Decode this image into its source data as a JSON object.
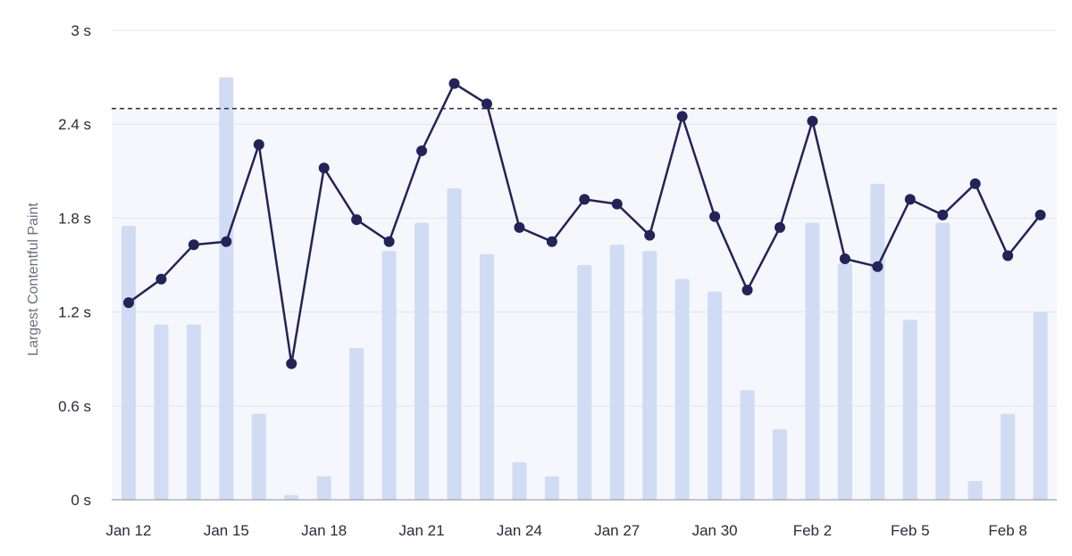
{
  "chart_data": {
    "type": "bar+line",
    "ylabel": "Largest Contentful Paint",
    "y_unit": "s",
    "ylim": [
      0,
      3
    ],
    "y_ticks": [
      0,
      0.6,
      1.2,
      1.8,
      2.4,
      3
    ],
    "y_tick_labels": [
      "0 s",
      "0.6 s",
      "1.2 s",
      "1.8 s",
      "2.4 s",
      "3 s"
    ],
    "threshold": 2.5,
    "threshold_style": "dashed",
    "shaded_band": [
      0,
      2.5
    ],
    "categories": [
      "Jan 12",
      "Jan 13",
      "Jan 14",
      "Jan 15",
      "Jan 16",
      "Jan 17",
      "Jan 18",
      "Jan 19",
      "Jan 20",
      "Jan 21",
      "Jan 22",
      "Jan 23",
      "Jan 24",
      "Jan 25",
      "Jan 26",
      "Jan 27",
      "Jan 28",
      "Jan 29",
      "Jan 30",
      "Jan 31",
      "Feb 1",
      "Feb 2",
      "Feb 3",
      "Feb 4",
      "Feb 5",
      "Feb 6",
      "Feb 7",
      "Feb 8",
      "Feb 9"
    ],
    "x_tick_labels": [
      {
        "index": 0,
        "label": "Jan 12"
      },
      {
        "index": 3,
        "label": "Jan 15"
      },
      {
        "index": 6,
        "label": "Jan 18"
      },
      {
        "index": 9,
        "label": "Jan 21"
      },
      {
        "index": 12,
        "label": "Jan 24"
      },
      {
        "index": 15,
        "label": "Jan 27"
      },
      {
        "index": 18,
        "label": "Jan 30"
      },
      {
        "index": 21,
        "label": "Feb 2"
      },
      {
        "index": 24,
        "label": "Feb 5"
      },
      {
        "index": 27,
        "label": "Feb 8"
      }
    ],
    "series": [
      {
        "name": "bars",
        "kind": "bar",
        "color": "#cfdcf3",
        "values": [
          1.75,
          1.12,
          1.12,
          2.7,
          0.55,
          0.03,
          0.15,
          0.97,
          1.59,
          1.77,
          1.99,
          1.57,
          0.24,
          0.15,
          1.5,
          1.63,
          1.59,
          1.41,
          1.33,
          0.7,
          0.45,
          1.77,
          1.51,
          2.02,
          1.15,
          1.77,
          0.12,
          0.55,
          1.2
        ]
      },
      {
        "name": "line",
        "kind": "line",
        "color": "#232358",
        "values": [
          1.26,
          1.41,
          1.63,
          1.65,
          2.27,
          0.87,
          2.12,
          1.79,
          1.65,
          2.23,
          2.66,
          2.53,
          1.74,
          1.65,
          1.92,
          1.89,
          1.69,
          2.45,
          1.81,
          1.34,
          1.74,
          2.42,
          1.54,
          1.49,
          1.92,
          1.82,
          2.02,
          1.56,
          1.82
        ]
      }
    ]
  },
  "colors": {
    "grid": "#e3e5ec",
    "band": "#f5f7fd",
    "axis_line": "#8a8d99",
    "threshold": "#2a2a3a"
  }
}
